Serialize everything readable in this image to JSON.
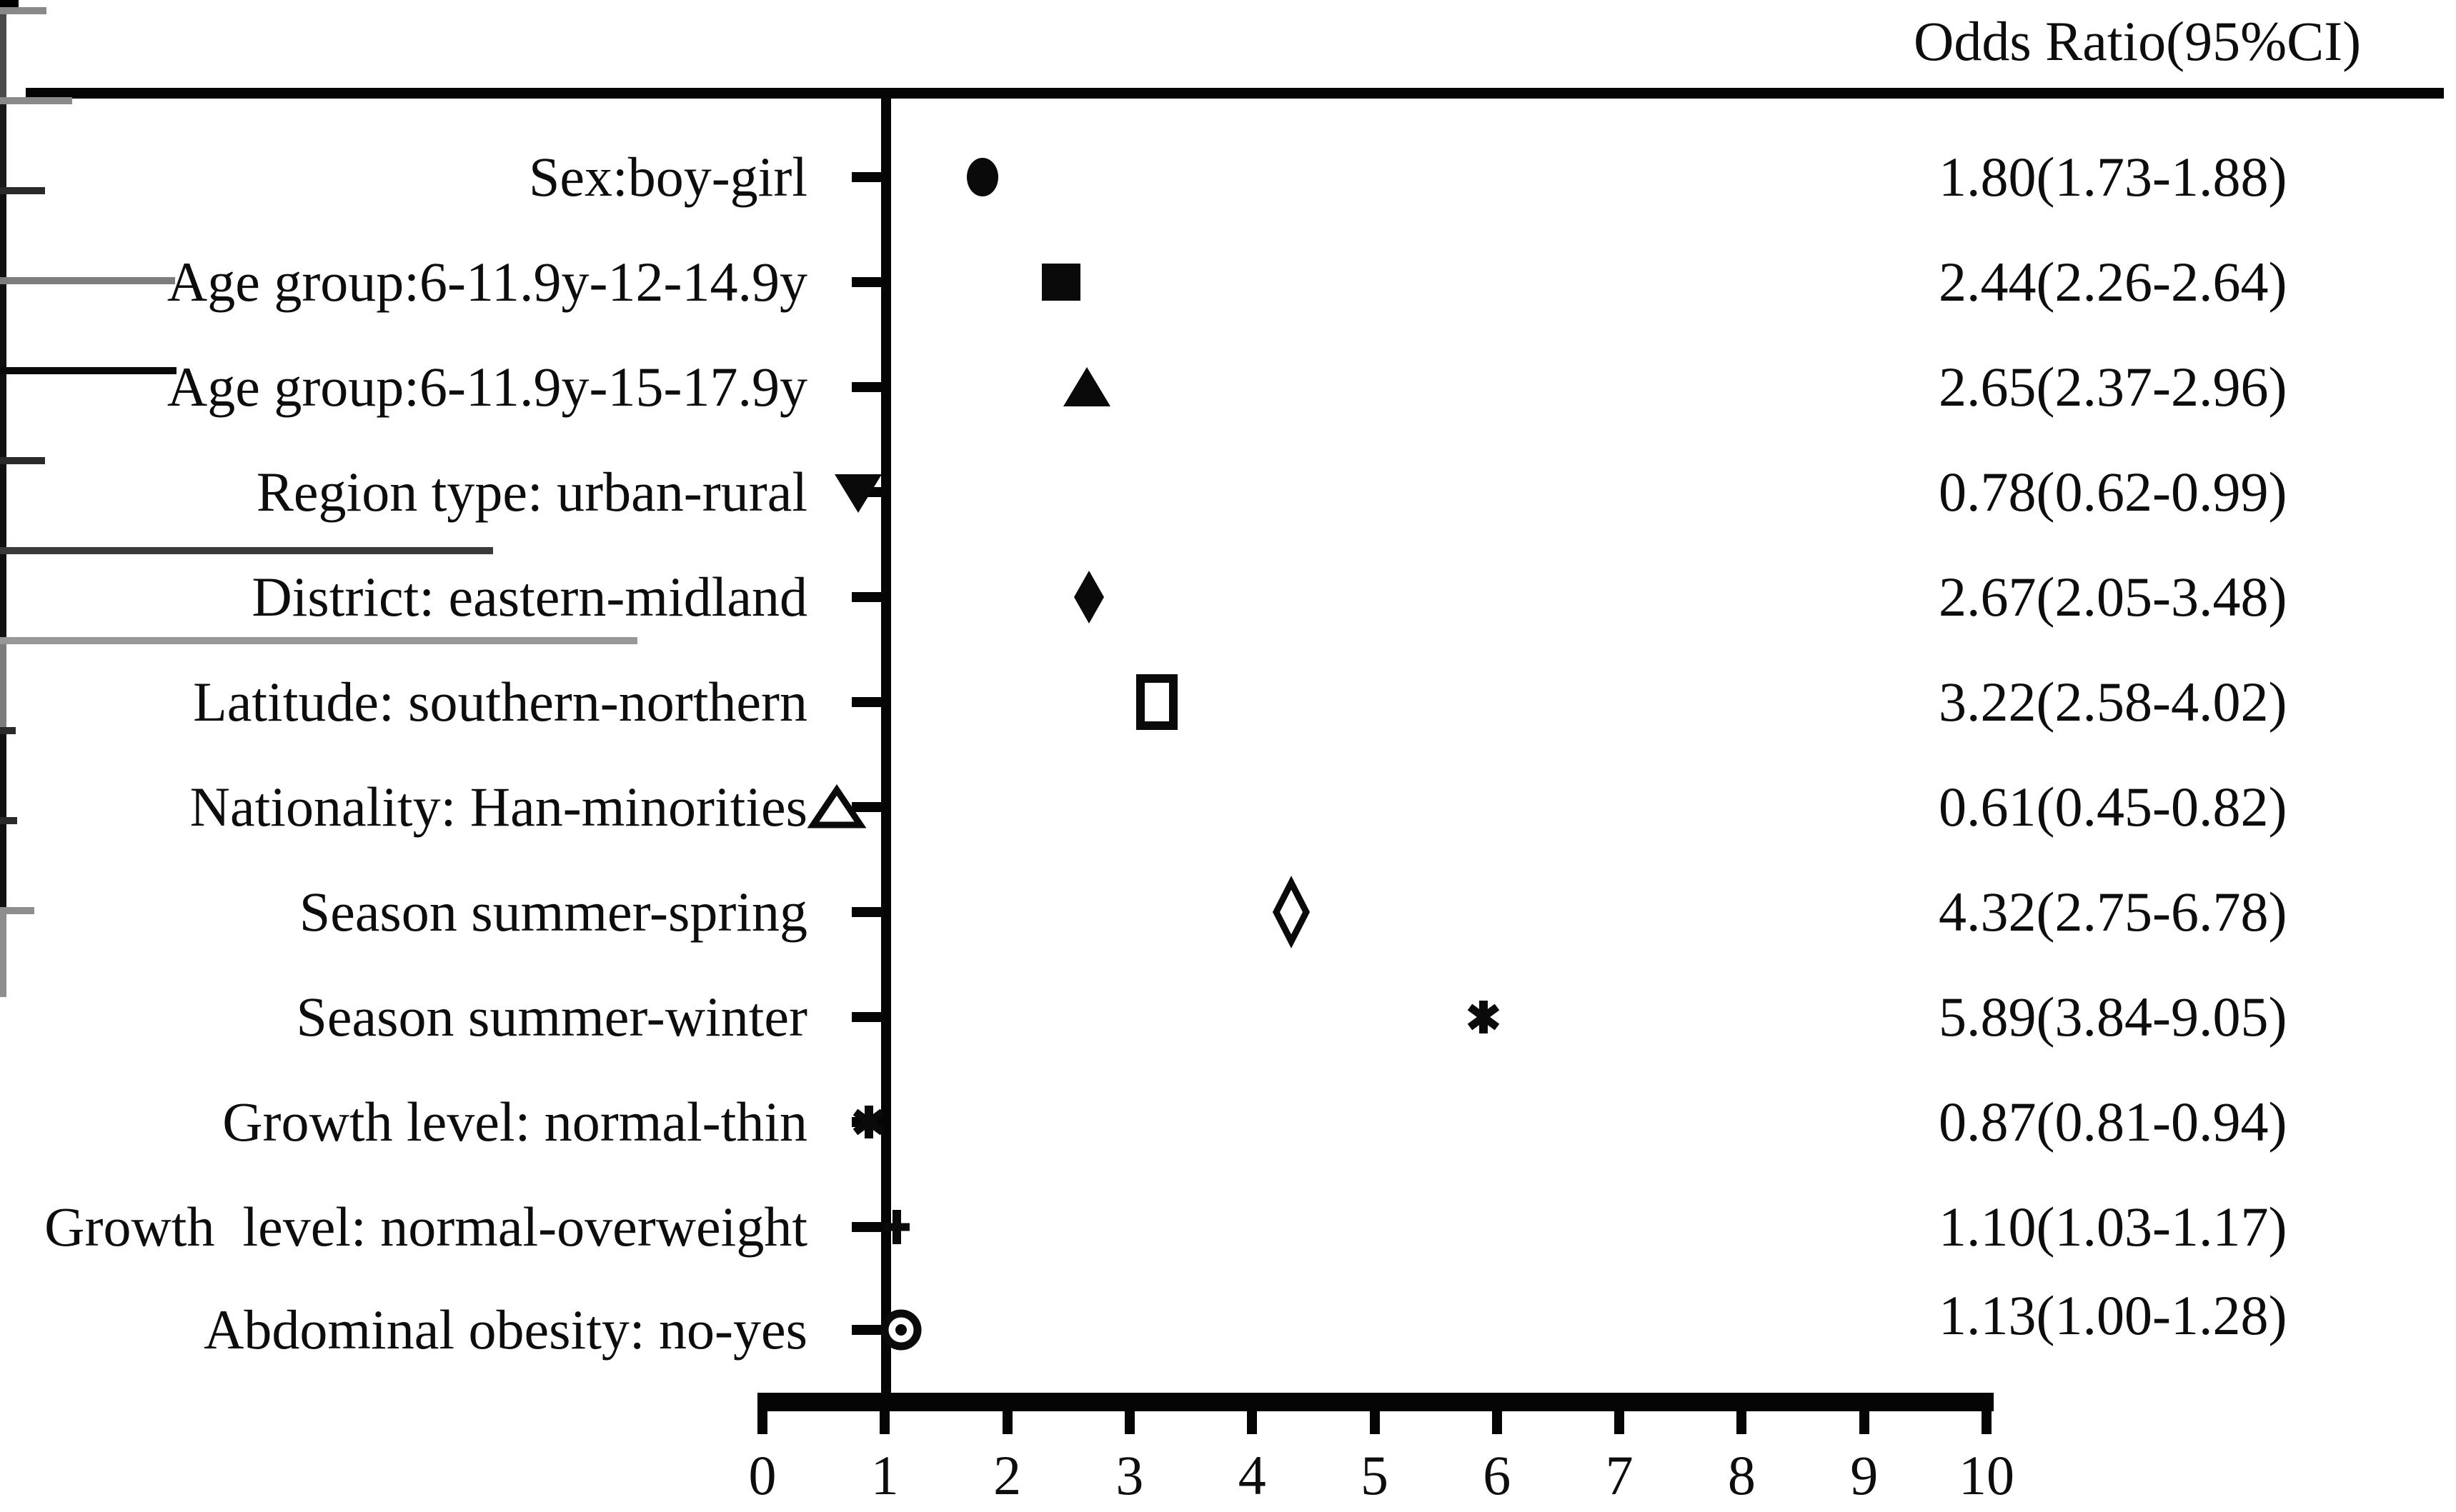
{
  "header": {
    "title": "Odds Ratio(95%CI)"
  },
  "chart_data": {
    "type": "scatter",
    "variant": "forest-plot",
    "title": "Odds Ratio(95%CI)",
    "xlabel": "",
    "xlim": [
      0,
      10
    ],
    "x_ticks": [
      "0",
      "1",
      "2",
      "3",
      "4",
      "5",
      "6",
      "7",
      "8",
      "9",
      "10"
    ],
    "reference_line_x": 1,
    "grid": false,
    "legend": "none",
    "rows": [
      {
        "label": "Sex:boy-girl",
        "or": 1.8,
        "ci_low": 1.73,
        "ci_high": 1.88,
        "or_ci_text": "1.80(1.73-1.88)",
        "marker": "circle-filled",
        "ci_color": "#000000",
        "cap_color": "#111111",
        "show_caps": false
      },
      {
        "label": "Age group:6-11.9y-12-14.9y",
        "or": 2.44,
        "ci_low": 2.26,
        "ci_high": 2.64,
        "or_ci_text": "2.44(2.26-2.64)",
        "marker": "square-filled",
        "ci_color": "#898989",
        "cap_color": "#4a4a4a",
        "show_caps": true
      },
      {
        "label": "Age group:6-11.9y-15-17.9y",
        "or": 2.65,
        "ci_low": 2.37,
        "ci_high": 2.96,
        "or_ci_text": "2.65(2.37-2.96)",
        "marker": "triangle-up-filled",
        "ci_color": "#8a8a8a",
        "cap_color": "#1a1a1a",
        "show_caps": true
      },
      {
        "label": "Region type: urban-rural",
        "or": 0.78,
        "ci_low": 0.62,
        "ci_high": 0.99,
        "or_ci_text": "0.78(0.62-0.99)",
        "marker": "triangle-down-filled",
        "ci_color": "#2a2a2a",
        "cap_color": "#111111",
        "show_caps": true
      },
      {
        "label": "District: eastern-midland",
        "or": 2.67,
        "ci_low": 2.05,
        "ci_high": 3.48,
        "or_ci_text": "2.67(2.05-3.48)",
        "marker": "diamond-filled",
        "ci_color": "#7d7d7d",
        "cap_color": "#111111",
        "show_caps": true
      },
      {
        "label": "Latitude: southern-northern",
        "or": 3.22,
        "ci_low": 2.58,
        "ci_high": 4.02,
        "or_ci_text": "3.22(2.58-4.02)",
        "marker": "square-open",
        "ci_color": "#0a0a0a",
        "cap_color": "#111111",
        "show_caps": true
      },
      {
        "label": "Nationality: Han-minorities",
        "or": 0.61,
        "ci_low": 0.45,
        "ci_high": 0.82,
        "or_ci_text": "0.61(0.45-0.82)",
        "marker": "triangle-up-open",
        "ci_color": "#2a2a2a",
        "cap_color": "#111111",
        "show_caps": true
      },
      {
        "label": "Season summer-spring",
        "or": 4.32,
        "ci_low": 2.75,
        "ci_high": 6.78,
        "or_ci_text": "4.32(2.75-6.78)",
        "marker": "diamond-open",
        "ci_color": "#3a3a3a",
        "cap_color": "#111111",
        "show_caps": true
      },
      {
        "label": "Season summer-winter",
        "or": 5.89,
        "ci_low": 3.84,
        "ci_high": 9.05,
        "or_ci_text": "5.89(3.84-9.05)",
        "marker": "asterisk",
        "ci_color": "#989898",
        "cap_color": "#7d7d7d",
        "show_caps": true
      },
      {
        "label": "Growth level: normal-thin",
        "or": 0.87,
        "ci_low": 0.81,
        "ci_high": 0.94,
        "or_ci_text": "0.87(0.81-0.94)",
        "marker": "asterisk",
        "ci_color": "#2a2a2a",
        "cap_color": "#111111",
        "show_caps": true
      },
      {
        "label": "Growth  level: normal-overweight",
        "or": 1.1,
        "ci_low": 1.03,
        "ci_high": 1.17,
        "or_ci_text": "1.10(1.03-1.17)",
        "marker": "plus",
        "ci_color": "#2a2a2a",
        "cap_color": "#111111",
        "show_caps": true
      },
      {
        "label": "Abdominal obesity: no-yes",
        "or": 1.13,
        "ci_low": 1.0,
        "ci_high": 1.28,
        "or_ci_text": "1.13(1.00-1.28)",
        "marker": "circle-dot",
        "ci_color": "#8e8e8e",
        "cap_color": "#8e8e8e",
        "show_caps": true
      }
    ]
  }
}
